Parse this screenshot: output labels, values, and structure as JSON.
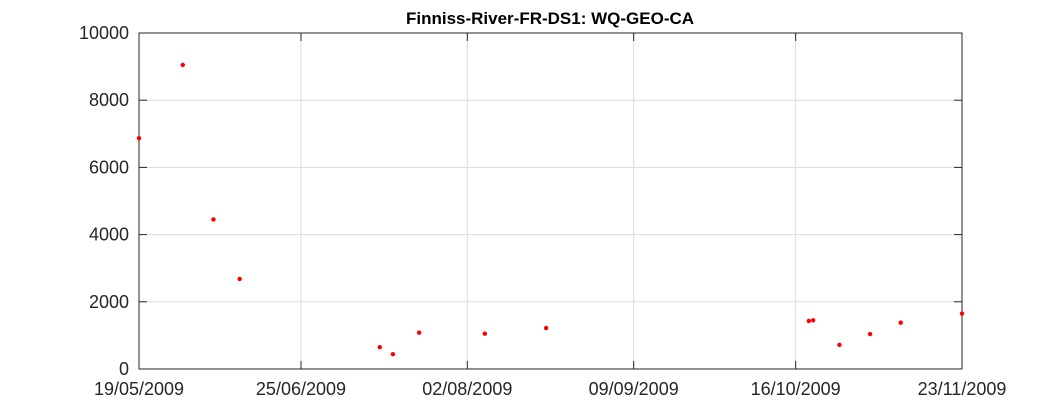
{
  "chart_data": {
    "type": "scatter",
    "title": "Finniss-River-FR-DS1: WQ-GEO-CA",
    "xlabel": "",
    "ylabel": "",
    "xlim": [
      "2009-05-19",
      "2009-11-23"
    ],
    "ylim": [
      0,
      10000
    ],
    "grid": true,
    "marker_color": "#ff0000",
    "x_ticks": [
      "19/05/2009",
      "25/06/2009",
      "02/08/2009",
      "09/09/2009",
      "16/10/2009",
      "23/11/2009"
    ],
    "y_ticks": [
      "0",
      "2000",
      "4000",
      "6000",
      "8000",
      "10000"
    ],
    "x_tick_dates": [
      "2009-05-19",
      "2009-06-25",
      "2009-08-02",
      "2009-09-09",
      "2009-10-16",
      "2009-11-23"
    ],
    "y_tick_values": [
      0,
      2000,
      4000,
      6000,
      8000,
      10000
    ],
    "series": [
      {
        "points": [
          {
            "x": "2009-05-19",
            "y": 6870
          },
          {
            "x": "2009-05-29",
            "y": 9050
          },
          {
            "x": "2009-06-05",
            "y": 4450
          },
          {
            "x": "2009-06-11",
            "y": 2680
          },
          {
            "x": "2009-07-13",
            "y": 650
          },
          {
            "x": "2009-07-16",
            "y": 440
          },
          {
            "x": "2009-07-22",
            "y": 1080
          },
          {
            "x": "2009-08-06",
            "y": 1050
          },
          {
            "x": "2009-08-20",
            "y": 1220
          },
          {
            "x": "2009-10-19",
            "y": 1430
          },
          {
            "x": "2009-10-20",
            "y": 1450
          },
          {
            "x": "2009-10-26",
            "y": 720
          },
          {
            "x": "2009-11-02",
            "y": 1040
          },
          {
            "x": "2009-11-09",
            "y": 1380
          },
          {
            "x": "2009-11-23",
            "y": 1650
          }
        ]
      }
    ]
  }
}
